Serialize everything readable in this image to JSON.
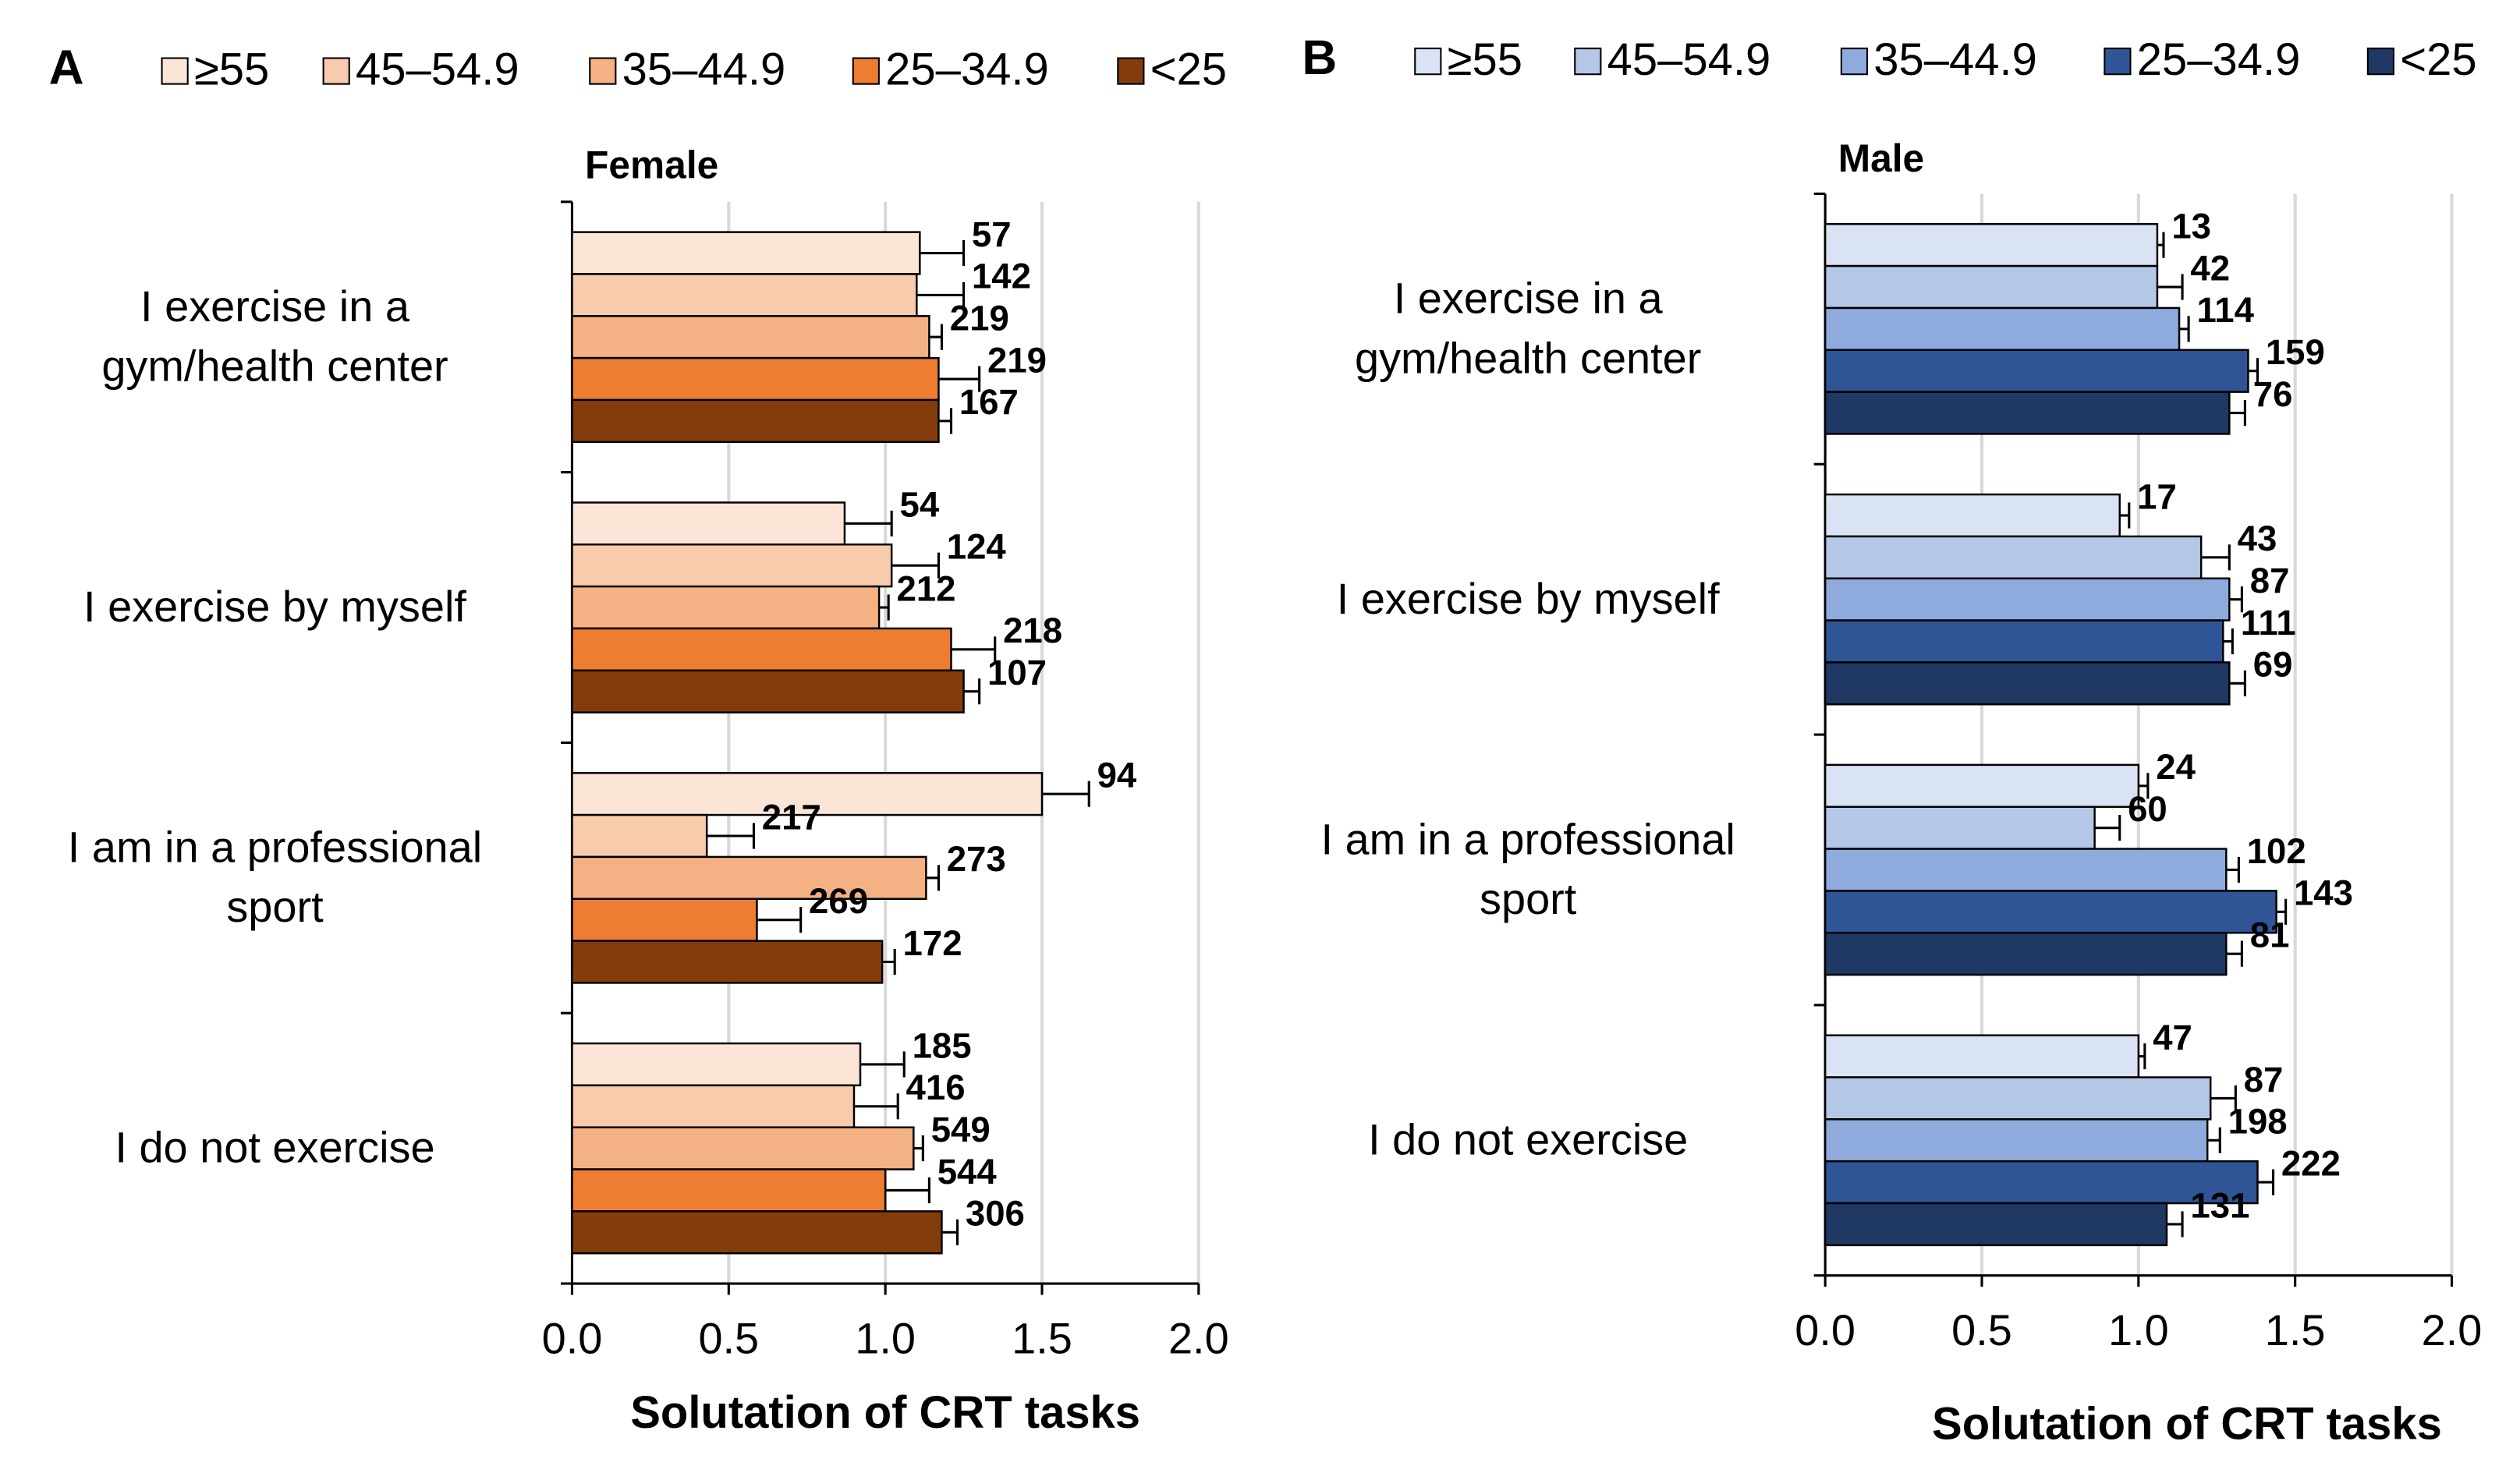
{
  "chart_data": [
    {
      "type": "bar",
      "orientation": "horizontal",
      "panel": "A",
      "title": "Female",
      "xlabel": "Solutation of CRT tasks",
      "categories": [
        "I exercise in a\ngym/health center",
        "I exercise by myself",
        "I am in a professional\nsport",
        "I do not exercise"
      ],
      "xlim": [
        0,
        2
      ],
      "xticks": [
        {
          "value": 0,
          "label": "0.0"
        },
        0.5,
        {
          "value": 1,
          "label": "1.0"
        },
        1.5,
        {
          "value": 2,
          "label": "2.0"
        }
      ],
      "grid": true,
      "series": [
        {
          "name": "≥55",
          "color": "#fbe5d6",
          "values": [
            1.11,
            0.87,
            1.5,
            0.92
          ],
          "errors": [
            0.14,
            0.15,
            0.15,
            0.14
          ],
          "n": [
            57,
            54,
            94,
            185
          ]
        },
        {
          "name": "45–54.9",
          "color": "#f8cbad",
          "values": [
            1.1,
            1.02,
            0.43,
            0.9
          ],
          "errors": [
            0.15,
            0.15,
            0.15,
            0.14
          ],
          "n": [
            142,
            124,
            217,
            416
          ]
        },
        {
          "name": "35–44.9",
          "color": "#f4b183",
          "values": [
            1.14,
            0.98,
            1.13,
            1.09
          ],
          "errors": [
            0.04,
            0.03,
            0.04,
            0.03
          ],
          "n": [
            219,
            212,
            273,
            549
          ]
        },
        {
          "name": "25–34.9",
          "color": "#ed7d31",
          "values": [
            1.17,
            1.21,
            0.59,
            1.0
          ],
          "errors": [
            0.13,
            0.14,
            0.14,
            0.14
          ],
          "n": [
            219,
            218,
            269,
            544
          ]
        },
        {
          "name": "<25",
          "color": "#843c0c",
          "values": [
            1.17,
            1.25,
            0.99,
            1.18
          ],
          "errors": [
            0.04,
            0.05,
            0.04,
            0.05
          ],
          "n": [
            167,
            107,
            172,
            306
          ]
        }
      ]
    },
    {
      "type": "bar",
      "orientation": "horizontal",
      "panel": "B",
      "title": "Male",
      "xlabel": "Solutation of CRT tasks",
      "categories": [
        "I exercise in a\ngym/health center",
        "I exercise by myself",
        "I am in a professional\nsport",
        "I do not exercise"
      ],
      "xlim": [
        0,
        2
      ],
      "xticks": [
        {
          "value": 0,
          "label": "0.0"
        },
        0.5,
        {
          "value": 1,
          "label": "1.0"
        },
        1.5,
        {
          "value": 2,
          "label": "2.0"
        }
      ],
      "grid": true,
      "series": [
        {
          "name": "≥55",
          "color": "#dae3f3",
          "values": [
            1.06,
            0.94,
            1.0,
            1.0
          ],
          "errors": [
            0.02,
            0.03,
            0.03,
            0.02
          ],
          "n": [
            13,
            17,
            24,
            47
          ]
        },
        {
          "name": "45–54.9",
          "color": "#b4c7e7",
          "values": [
            1.06,
            1.2,
            0.86,
            1.23
          ],
          "errors": [
            0.08,
            0.09,
            0.08,
            0.08
          ],
          "n": [
            42,
            43,
            60,
            87
          ]
        },
        {
          "name": "35–44.9",
          "color": "#8faadc",
          "values": [
            1.13,
            1.29,
            1.28,
            1.22
          ],
          "errors": [
            0.03,
            0.04,
            0.04,
            0.04
          ],
          "n": [
            114,
            87,
            102,
            198
          ]
        },
        {
          "name": "25–34.9",
          "color": "#2f5597",
          "values": [
            1.35,
            1.27,
            1.44,
            1.38
          ],
          "errors": [
            0.03,
            0.03,
            0.03,
            0.05
          ],
          "n": [
            159,
            111,
            143,
            222
          ]
        },
        {
          "name": "<25",
          "color": "#203864",
          "values": [
            1.29,
            1.29,
            1.28,
            1.09
          ],
          "errors": [
            0.05,
            0.05,
            0.05,
            0.05
          ],
          "n": [
            76,
            69,
            81,
            131
          ]
        }
      ]
    }
  ]
}
